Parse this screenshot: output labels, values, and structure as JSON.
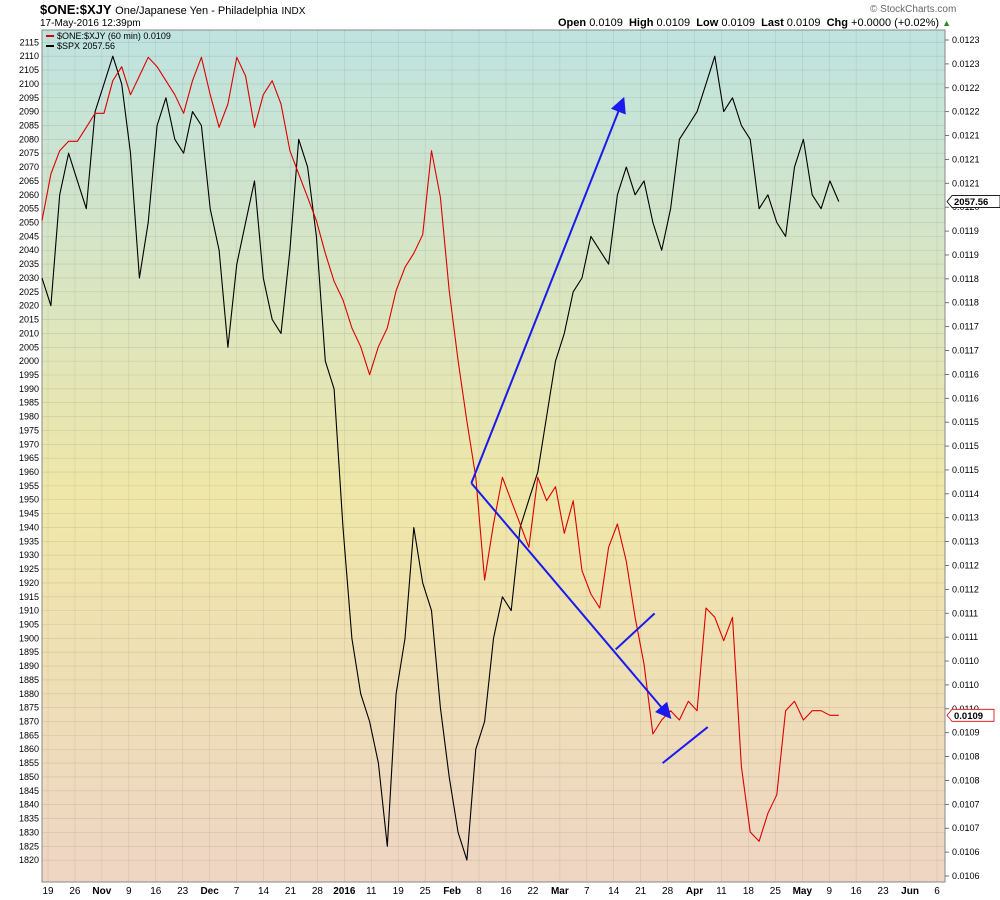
{
  "header": {
    "symbol": "$ONE:$XJY",
    "description": "One/Japanese Yen - Philadelphia",
    "exchange": "INDX",
    "date_time": "17-May-2016 12:39pm",
    "watermark": "© StockCharts.com",
    "quote": {
      "open_label": "Open",
      "open": "0.0109",
      "high_label": "High",
      "high": "0.0109",
      "low_label": "Low",
      "low": "0.0109",
      "last_label": "Last",
      "last": "0.0109",
      "chg_label": "Chg",
      "chg": "+0.0000 (+0.02%)"
    }
  },
  "legend": [
    {
      "label": "$ONE:$XJY (60 min) 0.0109",
      "color": "#dd0000"
    },
    {
      "label": "$SPX 2057.56",
      "color": "#000000"
    }
  ],
  "colors": {
    "xjy": "#dd0000",
    "spx": "#000000",
    "annotation": "#1a1aee",
    "bg_top": "#bfe3e0",
    "bg_mid": "#efe7a8",
    "bg_bottom": "#eed5c4"
  },
  "chart_data": {
    "type": "line",
    "title": "$ONE:$XJY One/Japanese Yen - Philadelphia INDX",
    "x_tick_labels": [
      "19",
      "26",
      "Nov",
      "9",
      "16",
      "23",
      "Dec",
      "7",
      "14",
      "21",
      "28",
      "2016",
      "11",
      "19",
      "25",
      "Feb",
      "8",
      "16",
      "22",
      "Mar",
      "7",
      "14",
      "21",
      "28",
      "Apr",
      "11",
      "18",
      "25",
      "May",
      "9",
      "16",
      "23",
      "Jun",
      "6"
    ],
    "left_axis": {
      "series": "$SPX",
      "ylim": [
        1815,
        2118
      ],
      "tick_labels": [
        "2115",
        "2110",
        "2105",
        "2100",
        "2095",
        "2090",
        "2085",
        "2080",
        "2075",
        "2070",
        "2065",
        "2060",
        "2055",
        "2050",
        "2045",
        "2040",
        "2035",
        "2030",
        "2025",
        "2020",
        "2015",
        "2010",
        "2005",
        "2000",
        "1995",
        "1990",
        "1985",
        "1980",
        "1975",
        "1970",
        "1965",
        "1960",
        "1955",
        "1950",
        "1945",
        "1940",
        "1935",
        "1930",
        "1925",
        "1920",
        "1915",
        "1910",
        "1905",
        "1900",
        "1895",
        "1890",
        "1885",
        "1880",
        "1875",
        "1870",
        "1865",
        "1860",
        "1855",
        "1850",
        "1845",
        "1840",
        "1835",
        "1830",
        "1825",
        "1820"
      ]
    },
    "right_axis": {
      "series": "$ONE:$XJY",
      "ylim": [
        0.01055,
        0.01235
      ],
      "tick_labels": [
        "0.0123",
        "0.0123",
        "0.0122",
        "0.0122",
        "0.0121",
        "0.0121",
        "0.0121",
        "0.0120",
        "0.0119",
        "0.0119",
        "0.0118",
        "0.0118",
        "0.0117",
        "0.0117",
        "0.0116",
        "0.0116",
        "0.0115",
        "0.0115",
        "0.0115",
        "0.0114",
        "0.0113",
        "0.0113",
        "0.0112",
        "0.0112",
        "0.0111",
        "0.0111",
        "0.0110",
        "0.0110",
        "0.0110",
        "0.0109",
        "0.0108",
        "0.0108",
        "0.0107",
        "0.0107",
        "0.0106",
        "0.0106"
      ],
      "last_value_tags": [
        {
          "label": "2057.56",
          "value": 2057.56,
          "axis": "left"
        },
        {
          "label": "0.0109",
          "value": 0.01089,
          "axis": "right"
        }
      ]
    },
    "series": [
      {
        "name": "$SPX",
        "axis": "left",
        "color": "#000000",
        "points": [
          [
            0,
            2030
          ],
          [
            1,
            2020
          ],
          [
            2,
            2060
          ],
          [
            3,
            2075
          ],
          [
            4,
            2065
          ],
          [
            5,
            2055
          ],
          [
            6,
            2090
          ],
          [
            7,
            2100
          ],
          [
            8,
            2110
          ],
          [
            9,
            2100
          ],
          [
            10,
            2075
          ],
          [
            11,
            2030
          ],
          [
            12,
            2050
          ],
          [
            13,
            2085
          ],
          [
            14,
            2095
          ],
          [
            15,
            2080
          ],
          [
            16,
            2075
          ],
          [
            17,
            2090
          ],
          [
            18,
            2085
          ],
          [
            19,
            2055
          ],
          [
            20,
            2040
          ],
          [
            21,
            2005
          ],
          [
            22,
            2035
          ],
          [
            23,
            2050
          ],
          [
            24,
            2065
          ],
          [
            25,
            2030
          ],
          [
            26,
            2015
          ],
          [
            27,
            2010
          ],
          [
            28,
            2040
          ],
          [
            29,
            2080
          ],
          [
            30,
            2070
          ],
          [
            31,
            2045
          ],
          [
            32,
            2000
          ],
          [
            33,
            1990
          ],
          [
            34,
            1940
          ],
          [
            35,
            1900
          ],
          [
            36,
            1880
          ],
          [
            37,
            1870
          ],
          [
            38,
            1855
          ],
          [
            39,
            1825
          ],
          [
            40,
            1880
          ],
          [
            41,
            1900
          ],
          [
            42,
            1940
          ],
          [
            43,
            1920
          ],
          [
            44,
            1910
          ],
          [
            45,
            1875
          ],
          [
            46,
            1850
          ],
          [
            47,
            1830
          ],
          [
            48,
            1820
          ],
          [
            49,
            1860
          ],
          [
            50,
            1870
          ],
          [
            51,
            1900
          ],
          [
            52,
            1915
          ],
          [
            53,
            1910
          ],
          [
            54,
            1940
          ],
          [
            55,
            1950
          ],
          [
            56,
            1960
          ],
          [
            57,
            1980
          ],
          [
            58,
            2000
          ],
          [
            59,
            2010
          ],
          [
            60,
            2025
          ],
          [
            61,
            2030
          ],
          [
            62,
            2045
          ],
          [
            63,
            2040
          ],
          [
            64,
            2035
          ],
          [
            65,
            2060
          ],
          [
            66,
            2070
          ],
          [
            67,
            2060
          ],
          [
            68,
            2065
          ],
          [
            69,
            2050
          ],
          [
            70,
            2040
          ],
          [
            71,
            2055
          ],
          [
            72,
            2080
          ],
          [
            73,
            2085
          ],
          [
            74,
            2090
          ],
          [
            75,
            2100
          ],
          [
            76,
            2110
          ],
          [
            77,
            2090
          ],
          [
            78,
            2095
          ],
          [
            79,
            2085
          ],
          [
            80,
            2080
          ],
          [
            81,
            2055
          ],
          [
            82,
            2060
          ],
          [
            83,
            2050
          ],
          [
            84,
            2045
          ],
          [
            85,
            2070
          ],
          [
            86,
            2080
          ],
          [
            87,
            2060
          ],
          [
            88,
            2055
          ],
          [
            89,
            2065
          ],
          [
            90,
            2057.56
          ]
        ]
      },
      {
        "name": "$ONE:$XJY",
        "axis": "right",
        "color": "#dd0000",
        "points": [
          [
            0,
            0.01195
          ],
          [
            1,
            0.01205
          ],
          [
            2,
            0.0121
          ],
          [
            3,
            0.01212
          ],
          [
            4,
            0.01212
          ],
          [
            5,
            0.01215
          ],
          [
            6,
            0.01218
          ],
          [
            7,
            0.01218
          ],
          [
            8,
            0.01225
          ],
          [
            9,
            0.01228
          ],
          [
            10,
            0.01222
          ],
          [
            11,
            0.01226
          ],
          [
            12,
            0.0123
          ],
          [
            13,
            0.01228
          ],
          [
            14,
            0.01225
          ],
          [
            15,
            0.01222
          ],
          [
            16,
            0.01218
          ],
          [
            17,
            0.01225
          ],
          [
            18,
            0.0123
          ],
          [
            19,
            0.01222
          ],
          [
            20,
            0.01215
          ],
          [
            21,
            0.0122
          ],
          [
            22,
            0.0123
          ],
          [
            23,
            0.01226
          ],
          [
            24,
            0.01215
          ],
          [
            25,
            0.01222
          ],
          [
            26,
            0.01225
          ],
          [
            27,
            0.0122
          ],
          [
            28,
            0.0121
          ],
          [
            29,
            0.01205
          ],
          [
            30,
            0.012
          ],
          [
            31,
            0.01195
          ],
          [
            32,
            0.01188
          ],
          [
            33,
            0.01182
          ],
          [
            34,
            0.01178
          ],
          [
            35,
            0.01172
          ],
          [
            36,
            0.01168
          ],
          [
            37,
            0.01162
          ],
          [
            38,
            0.01168
          ],
          [
            39,
            0.01172
          ],
          [
            40,
            0.0118
          ],
          [
            41,
            0.01185
          ],
          [
            42,
            0.01188
          ],
          [
            43,
            0.01192
          ],
          [
            44,
            0.0121
          ],
          [
            45,
            0.012
          ],
          [
            46,
            0.0118
          ],
          [
            47,
            0.01165
          ],
          [
            48,
            0.01152
          ],
          [
            49,
            0.0114
          ],
          [
            50,
            0.01118
          ],
          [
            51,
            0.0113
          ],
          [
            52,
            0.0114
          ],
          [
            53,
            0.01135
          ],
          [
            54,
            0.0113
          ],
          [
            55,
            0.01125
          ],
          [
            56,
            0.0114
          ],
          [
            57,
            0.01135
          ],
          [
            58,
            0.01138
          ],
          [
            59,
            0.01128
          ],
          [
            60,
            0.01135
          ],
          [
            61,
            0.0112
          ],
          [
            62,
            0.01115
          ],
          [
            63,
            0.01112
          ],
          [
            64,
            0.01125
          ],
          [
            65,
            0.0113
          ],
          [
            66,
            0.01122
          ],
          [
            67,
            0.0111
          ],
          [
            68,
            0.011
          ],
          [
            69,
            0.01085
          ],
          [
            70,
            0.01088
          ],
          [
            71,
            0.0109
          ],
          [
            72,
            0.01088
          ],
          [
            73,
            0.01092
          ],
          [
            74,
            0.0109
          ],
          [
            75,
            0.01112
          ],
          [
            76,
            0.0111
          ],
          [
            77,
            0.01105
          ],
          [
            78,
            0.0111
          ],
          [
            79,
            0.01078
          ],
          [
            80,
            0.01064
          ],
          [
            81,
            0.01062
          ],
          [
            82,
            0.01068
          ],
          [
            83,
            0.01072
          ],
          [
            84,
            0.0109
          ],
          [
            85,
            0.01092
          ],
          [
            86,
            0.01088
          ],
          [
            87,
            0.0109
          ],
          [
            88,
            0.0109
          ],
          [
            89,
            0.01089
          ],
          [
            90,
            0.01089
          ]
        ]
      }
    ],
    "annotations": [
      {
        "type": "arrow",
        "from": [
          48.5,
          1956
        ],
        "to": [
          65.6,
          2094
        ],
        "axis": "left"
      },
      {
        "type": "arrow",
        "from": [
          48.5,
          1956
        ],
        "to": [
          70.8,
          1872
        ],
        "axis": "left"
      },
      {
        "type": "line",
        "from": [
          64.8,
          1896
        ],
        "to": [
          69.2,
          1909
        ],
        "axis": "left"
      },
      {
        "type": "line",
        "from": [
          70.1,
          1855
        ],
        "to": [
          75.2,
          1868
        ],
        "axis": "left"
      }
    ],
    "grid": true,
    "legend_position": "top-left"
  }
}
